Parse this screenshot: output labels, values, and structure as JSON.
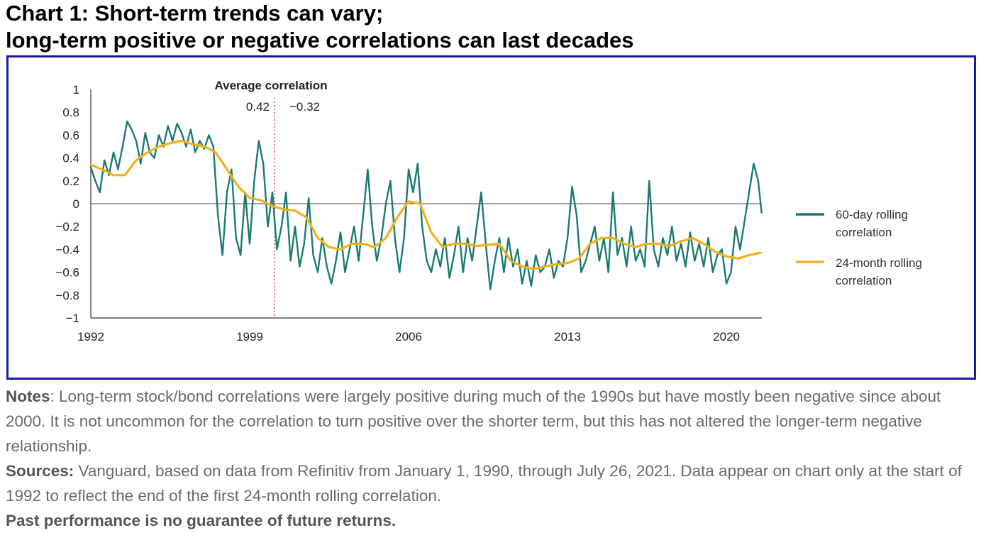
{
  "title": {
    "line1": "Chart 1: Short-term trends can vary;",
    "line2": "long-term positive or negative correlations can last decades"
  },
  "colors": {
    "frame": "#1a1aa6",
    "series_60day": "#1a7a72",
    "series_24month": "#f2b01e",
    "marker_line": "#c0392b"
  },
  "chart_data": {
    "type": "line",
    "title": "",
    "xlabel": "",
    "ylabel": "",
    "xlim": [
      1992,
      2021.56
    ],
    "ylim": [
      -1,
      1
    ],
    "x_ticks": [
      "1992",
      "1999",
      "2006",
      "2013",
      "2020"
    ],
    "y_ticks": [
      "1",
      "0.8",
      "0.6",
      "0.4",
      "0.2",
      "0",
      "−0.2",
      "−0.4",
      "−0.6",
      "−0.8",
      "−1"
    ],
    "grid": false,
    "legend": "right",
    "annotation": {
      "title": "Average correlation",
      "left_value": "0.42",
      "right_value": "−0.32",
      "divider_x": 2000.1
    },
    "series": [
      {
        "name": "60-day rolling correlation",
        "x": [
          1992.0,
          1992.2,
          1992.4,
          1992.6,
          1992.8,
          1993.0,
          1993.2,
          1993.4,
          1993.6,
          1993.8,
          1994.0,
          1994.2,
          1994.4,
          1994.6,
          1994.8,
          1995.0,
          1995.2,
          1995.4,
          1995.6,
          1995.8,
          1996.0,
          1996.2,
          1996.4,
          1996.6,
          1996.8,
          1997.0,
          1997.2,
          1997.4,
          1997.6,
          1997.8,
          1998.0,
          1998.2,
          1998.4,
          1998.6,
          1998.8,
          1999.0,
          1999.2,
          1999.4,
          1999.6,
          1999.8,
          2000.0,
          2000.2,
          2000.4,
          2000.6,
          2000.8,
          2001.0,
          2001.2,
          2001.4,
          2001.6,
          2001.8,
          2002.0,
          2002.2,
          2002.4,
          2002.6,
          2002.8,
          2003.0,
          2003.2,
          2003.4,
          2003.6,
          2003.8,
          2004.0,
          2004.2,
          2004.4,
          2004.6,
          2004.8,
          2005.0,
          2005.2,
          2005.4,
          2005.6,
          2005.8,
          2006.0,
          2006.2,
          2006.4,
          2006.6,
          2006.8,
          2007.0,
          2007.2,
          2007.4,
          2007.6,
          2007.8,
          2008.0,
          2008.2,
          2008.4,
          2008.6,
          2008.8,
          2009.0,
          2009.2,
          2009.4,
          2009.6,
          2009.8,
          2010.0,
          2010.2,
          2010.4,
          2010.6,
          2010.8,
          2011.0,
          2011.2,
          2011.4,
          2011.6,
          2011.8,
          2012.0,
          2012.2,
          2012.4,
          2012.6,
          2012.8,
          2013.0,
          2013.2,
          2013.4,
          2013.6,
          2013.8,
          2014.0,
          2014.2,
          2014.4,
          2014.6,
          2014.8,
          2015.0,
          2015.2,
          2015.4,
          2015.6,
          2015.8,
          2016.0,
          2016.2,
          2016.4,
          2016.6,
          2016.8,
          2017.0,
          2017.2,
          2017.4,
          2017.6,
          2017.8,
          2018.0,
          2018.2,
          2018.4,
          2018.6,
          2018.8,
          2019.0,
          2019.2,
          2019.4,
          2019.6,
          2019.8,
          2020.0,
          2020.2,
          2020.4,
          2020.6,
          2020.8,
          2021.0,
          2021.2,
          2021.4,
          2021.55
        ],
        "values": [
          0.32,
          0.2,
          0.1,
          0.38,
          0.25,
          0.45,
          0.3,
          0.5,
          0.72,
          0.65,
          0.55,
          0.35,
          0.62,
          0.45,
          0.4,
          0.6,
          0.5,
          0.68,
          0.55,
          0.7,
          0.62,
          0.5,
          0.65,
          0.45,
          0.55,
          0.48,
          0.6,
          0.5,
          -0.1,
          -0.45,
          0.1,
          0.3,
          -0.3,
          -0.45,
          0.1,
          -0.35,
          0.2,
          0.55,
          0.35,
          -0.2,
          0.1,
          -0.4,
          -0.2,
          0.1,
          -0.5,
          -0.2,
          -0.55,
          -0.35,
          0.05,
          -0.45,
          -0.6,
          -0.3,
          -0.55,
          -0.7,
          -0.5,
          -0.25,
          -0.6,
          -0.4,
          -0.2,
          -0.5,
          -0.1,
          0.3,
          -0.2,
          -0.5,
          -0.3,
          0.0,
          0.2,
          -0.3,
          -0.6,
          -0.3,
          0.3,
          0.1,
          0.35,
          -0.2,
          -0.5,
          -0.6,
          -0.4,
          -0.55,
          -0.3,
          -0.65,
          -0.45,
          -0.2,
          -0.6,
          -0.3,
          -0.5,
          -0.2,
          0.1,
          -0.35,
          -0.75,
          -0.5,
          -0.3,
          -0.6,
          -0.3,
          -0.55,
          -0.4,
          -0.7,
          -0.5,
          -0.72,
          -0.45,
          -0.6,
          -0.55,
          -0.4,
          -0.65,
          -0.5,
          -0.55,
          -0.3,
          0.15,
          -0.1,
          -0.6,
          -0.5,
          -0.35,
          -0.2,
          -0.5,
          -0.3,
          -0.6,
          0.1,
          -0.45,
          -0.3,
          -0.55,
          -0.2,
          -0.5,
          -0.4,
          -0.55,
          0.2,
          -0.4,
          -0.55,
          -0.3,
          -0.45,
          -0.2,
          -0.5,
          -0.35,
          -0.55,
          -0.25,
          -0.5,
          -0.35,
          -0.55,
          -0.3,
          -0.6,
          -0.45,
          -0.4,
          -0.7,
          -0.6,
          -0.2,
          -0.4,
          -0.15,
          0.1,
          0.35,
          0.2,
          -0.08
        ]
      },
      {
        "name": "24-month rolling correlation",
        "x": [
          1992.0,
          1992.5,
          1993.0,
          1993.5,
          1994.0,
          1994.5,
          1995.0,
          1995.5,
          1996.0,
          1996.5,
          1997.0,
          1997.5,
          1998.0,
          1998.5,
          1999.0,
          1999.5,
          2000.0,
          2000.5,
          2001.0,
          2001.5,
          2002.0,
          2002.5,
          2003.0,
          2003.5,
          2004.0,
          2004.5,
          2005.0,
          2005.5,
          2006.0,
          2006.5,
          2007.0,
          2007.5,
          2008.0,
          2008.5,
          2009.0,
          2009.5,
          2010.0,
          2010.5,
          2011.0,
          2011.5,
          2012.0,
          2012.5,
          2013.0,
          2013.5,
          2014.0,
          2014.5,
          2015.0,
          2015.5,
          2016.0,
          2016.5,
          2017.0,
          2017.5,
          2018.0,
          2018.5,
          2019.0,
          2019.5,
          2020.0,
          2020.5,
          2021.0,
          2021.5
        ],
        "values": [
          0.34,
          0.3,
          0.25,
          0.25,
          0.38,
          0.45,
          0.5,
          0.53,
          0.55,
          0.52,
          0.5,
          0.45,
          0.3,
          0.15,
          0.05,
          0.03,
          -0.02,
          -0.05,
          -0.06,
          -0.12,
          -0.3,
          -0.38,
          -0.4,
          -0.35,
          -0.35,
          -0.38,
          -0.3,
          -0.12,
          0.02,
          0.0,
          -0.25,
          -0.38,
          -0.35,
          -0.35,
          -0.37,
          -0.36,
          -0.35,
          -0.5,
          -0.55,
          -0.57,
          -0.55,
          -0.53,
          -0.52,
          -0.48,
          -0.35,
          -0.3,
          -0.3,
          -0.35,
          -0.38,
          -0.35,
          -0.35,
          -0.37,
          -0.33,
          -0.3,
          -0.35,
          -0.42,
          -0.46,
          -0.48,
          -0.45,
          -0.43
        ]
      }
    ]
  },
  "notes": {
    "notes_label": "Notes",
    "notes_text": ": Long-term stock/bond correlations were largely positive during much of the 1990s but have mostly been negative since about 2000. It is not uncommon for the correlation to turn positive over the shorter term, but this has not altered the longer-term negative relationship.",
    "sources_label": "Sources:",
    "sources_text": " Vanguard, based on data from Refinitiv from January 1, 1990, through July 26, 2021. Data appear on chart only at the start of 1992 to reflect the end of the first 24-month rolling correlation.",
    "disclaimer": "Past performance is no guarantee of future returns."
  },
  "legend": {
    "item1_line1": "60-day rolling",
    "item1_line2": "correlation",
    "item2_line1": "24-month rolling",
    "item2_line2": "correlation"
  }
}
